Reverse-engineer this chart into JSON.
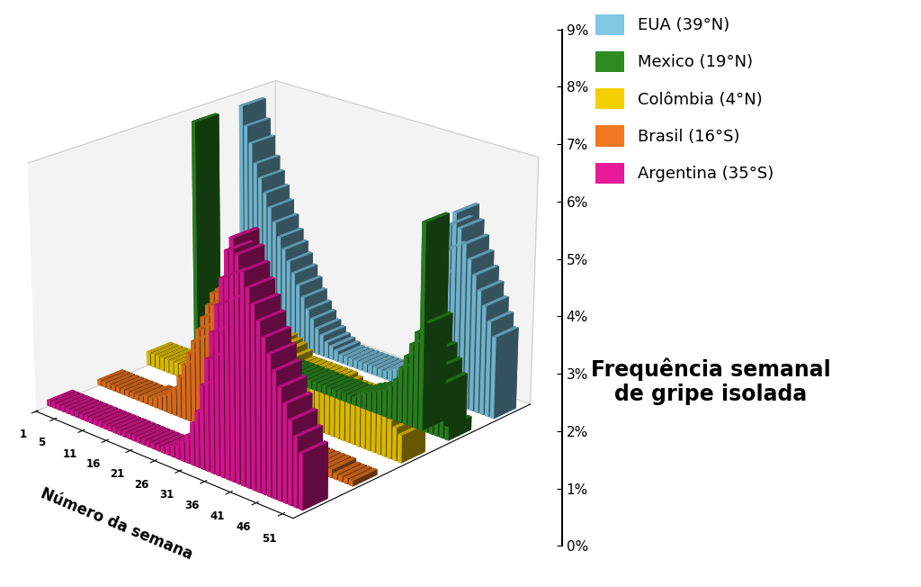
{
  "countries": [
    "EUA (39°N)",
    "Mexico (19°N)",
    "Colômbia (4°N)",
    "Brasil (16°S)",
    "Argentina (35°S)"
  ],
  "colors": [
    "#7EC8E3",
    "#2E8B22",
    "#F5D000",
    "#F07820",
    "#E8189A"
  ],
  "xlabel": "Número da semana",
  "ylabel_line1": "Frequência semanal",
  "ylabel_line2": "de gripe isolada",
  "yticks": [
    0,
    1,
    2,
    3,
    4,
    5,
    6,
    7,
    8,
    9
  ],
  "ytick_labels": [
    "0%",
    "1%",
    "2%",
    "3%",
    "4%",
    "5%",
    "6%",
    "7%",
    "8%",
    "9%"
  ],
  "xtick_labels": [
    "1",
    "5",
    "11",
    "16",
    "21",
    "26",
    "31",
    "36",
    "41",
    "46",
    "51"
  ],
  "xtick_vals": [
    1,
    5,
    11,
    16,
    21,
    26,
    31,
    36,
    41,
    46,
    51
  ],
  "weeks": 52,
  "eua": [
    8.5,
    7.8,
    7.2,
    6.5,
    6.0,
    5.5,
    5.0,
    4.5,
    4.0,
    3.6,
    3.2,
    2.8,
    2.4,
    2.0,
    1.6,
    1.3,
    1.0,
    0.8,
    0.6,
    0.5,
    0.4,
    0.3,
    0.3,
    0.3,
    0.3,
    0.3,
    0.3,
    0.3,
    0.3,
    0.3,
    0.3,
    0.4,
    0.5,
    0.6,
    0.8,
    1.0,
    1.5,
    2.0,
    2.8,
    3.5,
    4.5,
    5.5,
    6.5,
    7.0,
    6.5,
    6.0,
    5.5,
    5.0,
    4.5,
    4.0,
    3.5,
    3.0
  ],
  "mexico": [
    8.5,
    0.3,
    0.3,
    0.3,
    0.3,
    0.3,
    0.3,
    0.3,
    0.3,
    0.3,
    0.3,
    0.3,
    0.3,
    0.3,
    0.3,
    0.3,
    0.3,
    0.3,
    0.3,
    0.3,
    0.3,
    0.3,
    0.3,
    0.3,
    0.3,
    0.3,
    0.3,
    0.3,
    0.3,
    0.3,
    0.3,
    0.3,
    0.3,
    0.3,
    0.5,
    0.6,
    0.7,
    0.8,
    0.9,
    1.0,
    1.2,
    1.5,
    2.0,
    2.5,
    3.0,
    3.5,
    7.5,
    4.0,
    3.0,
    2.5,
    2.0,
    0.5
  ],
  "colombia": [
    0.5,
    0.5,
    0.5,
    0.5,
    0.5,
    0.5,
    0.5,
    0.5,
    0.6,
    0.6,
    0.6,
    0.7,
    0.7,
    0.7,
    0.8,
    0.8,
    0.9,
    1.0,
    1.1,
    1.2,
    1.3,
    1.5,
    1.8,
    2.0,
    2.3,
    2.5,
    2.6,
    2.5,
    2.4,
    2.2,
    2.0,
    2.0,
    2.0,
    2.0,
    2.0,
    2.0,
    2.0,
    2.0,
    2.0,
    1.9,
    1.8,
    1.8,
    1.8,
    1.8,
    1.8,
    1.8,
    1.7,
    1.6,
    1.5,
    1.4,
    1.2,
    1.0
  ],
  "brasil": [
    0.2,
    0.2,
    0.2,
    0.2,
    0.2,
    0.2,
    0.2,
    0.2,
    0.2,
    0.2,
    0.3,
    0.3,
    0.4,
    0.5,
    0.6,
    0.8,
    1.0,
    1.5,
    2.0,
    2.5,
    3.0,
    3.5,
    4.0,
    4.5,
    5.0,
    5.2,
    5.0,
    4.5,
    4.0,
    3.5,
    3.0,
    2.5,
    2.0,
    1.5,
    1.2,
    1.0,
    0.8,
    0.6,
    0.5,
    0.4,
    0.3,
    0.3,
    0.3,
    0.3,
    0.3,
    0.3,
    0.3,
    0.3,
    0.2,
    0.2,
    0.2,
    0.2
  ],
  "argentina": [
    0.2,
    0.2,
    0.2,
    0.2,
    0.2,
    0.2,
    0.2,
    0.2,
    0.2,
    0.2,
    0.2,
    0.2,
    0.2,
    0.2,
    0.2,
    0.2,
    0.2,
    0.2,
    0.2,
    0.2,
    0.2,
    0.2,
    0.2,
    0.2,
    0.2,
    0.3,
    0.4,
    0.5,
    0.7,
    1.0,
    1.5,
    2.0,
    3.0,
    4.0,
    5.0,
    6.0,
    7.0,
    8.0,
    8.5,
    8.0,
    7.5,
    7.0,
    6.5,
    6.0,
    5.5,
    5.0,
    4.5,
    4.0,
    3.5,
    3.0,
    2.5,
    2.0
  ]
}
